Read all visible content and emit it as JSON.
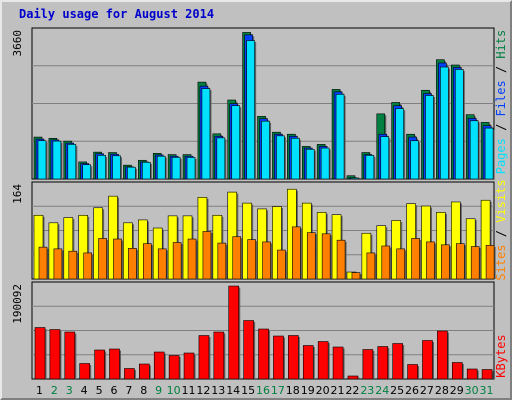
{
  "title": "Daily usage for August 2014",
  "colors": {
    "hits": "#008040",
    "files": "#0040ff",
    "pages": "#00e0ff",
    "visits": "#ffff00",
    "sites": "#ff8000",
    "kbytes": "#ff0000",
    "weekend": "#008040",
    "weekday": "#000000",
    "background": "#c0c0c0"
  },
  "chart_data": [
    {
      "type": "bar",
      "panel": "top",
      "ymax_label": "3660",
      "ylim": [
        0,
        3660
      ],
      "grid": true,
      "legend_text": {
        "pages": "Pages",
        "files": "Files",
        "hits": "Hits"
      },
      "categories": [
        "1",
        "2",
        "3",
        "4",
        "5",
        "6",
        "7",
        "8",
        "9",
        "10",
        "11",
        "12",
        "13",
        "14",
        "15",
        "16",
        "17",
        "18",
        "19",
        "20",
        "21",
        "22",
        "23",
        "24",
        "25",
        "26",
        "27",
        "28",
        "29",
        "30",
        "31"
      ],
      "weekend_days": [
        2,
        3,
        9,
        10,
        16,
        17,
        23,
        24,
        30,
        31
      ],
      "series": [
        {
          "name": "Hits",
          "values": [
            1030,
            1000,
            930,
            420,
            660,
            650,
            340,
            460,
            630,
            600,
            600,
            2380,
            1110,
            1940,
            3600,
            1540,
            1150,
            1100,
            800,
            850,
            2200,
            80,
            650,
            1600,
            1880,
            1100,
            2180,
            2930,
            2800,
            1580,
            1390
          ]
        },
        {
          "name": "Files",
          "values": [
            980,
            960,
            880,
            380,
            620,
            610,
            300,
            420,
            590,
            560,
            560,
            2280,
            1050,
            1850,
            3540,
            1480,
            1100,
            1050,
            760,
            800,
            2140,
            30,
            600,
            1100,
            1800,
            1030,
            2100,
            2850,
            2740,
            1490,
            1310
          ]
        },
        {
          "name": "Pages",
          "values": [
            940,
            930,
            850,
            350,
            580,
            570,
            290,
            410,
            560,
            530,
            530,
            2220,
            1010,
            1800,
            3400,
            1420,
            1060,
            1000,
            730,
            760,
            2080,
            10,
            580,
            1040,
            1730,
            940,
            2050,
            2750,
            2690,
            1430,
            1250
          ]
        }
      ]
    },
    {
      "type": "bar",
      "panel": "middle",
      "ymax_label": "164",
      "ylim": [
        0,
        164
      ],
      "grid": true,
      "legend_text": {
        "sites": "Sites",
        "visits": "Visits"
      },
      "categories": [
        "1",
        "2",
        "3",
        "4",
        "5",
        "6",
        "7",
        "8",
        "9",
        "10",
        "11",
        "12",
        "13",
        "14",
        "15",
        "16",
        "17",
        "18",
        "19",
        "20",
        "21",
        "22",
        "23",
        "24",
        "25",
        "26",
        "27",
        "28",
        "29",
        "30",
        "31"
      ],
      "series": [
        {
          "name": "Visits",
          "values": [
            110,
            97,
            106,
            110,
            123,
            143,
            97,
            102,
            88,
            109,
            109,
            141,
            110,
            150,
            131,
            121,
            125,
            155,
            131,
            115,
            111,
            12,
            79,
            92,
            101,
            130,
            126,
            115,
            133,
            104,
            136
          ]
        },
        {
          "name": "Sites",
          "values": [
            55,
            52,
            48,
            45,
            70,
            69,
            53,
            61,
            52,
            63,
            69,
            82,
            62,
            73,
            68,
            64,
            50,
            90,
            80,
            78,
            67,
            11,
            45,
            57,
            52,
            70,
            64,
            59,
            61,
            56,
            58
          ]
        }
      ]
    },
    {
      "type": "bar",
      "panel": "bottom",
      "ymax_label": "190092",
      "ylim": [
        0,
        190092
      ],
      "grid": true,
      "legend_text": {
        "kbytes": "KBytes"
      },
      "categories": [
        "1",
        "2",
        "3",
        "4",
        "5",
        "6",
        "7",
        "8",
        "9",
        "10",
        "11",
        "12",
        "13",
        "14",
        "15",
        "16",
        "17",
        "18",
        "19",
        "20",
        "21",
        "22",
        "23",
        "24",
        "25",
        "26",
        "27",
        "28",
        "29",
        "30",
        "31"
      ],
      "series": [
        {
          "name": "KBytes",
          "values": [
            103000,
            99000,
            94000,
            31000,
            58000,
            60000,
            21000,
            30000,
            54000,
            47000,
            52000,
            87000,
            94000,
            186000,
            117000,
            100000,
            86000,
            87000,
            67000,
            75000,
            64000,
            6000,
            59000,
            65000,
            71000,
            29000,
            77000,
            96000,
            33000,
            20000,
            19000
          ]
        }
      ]
    }
  ]
}
